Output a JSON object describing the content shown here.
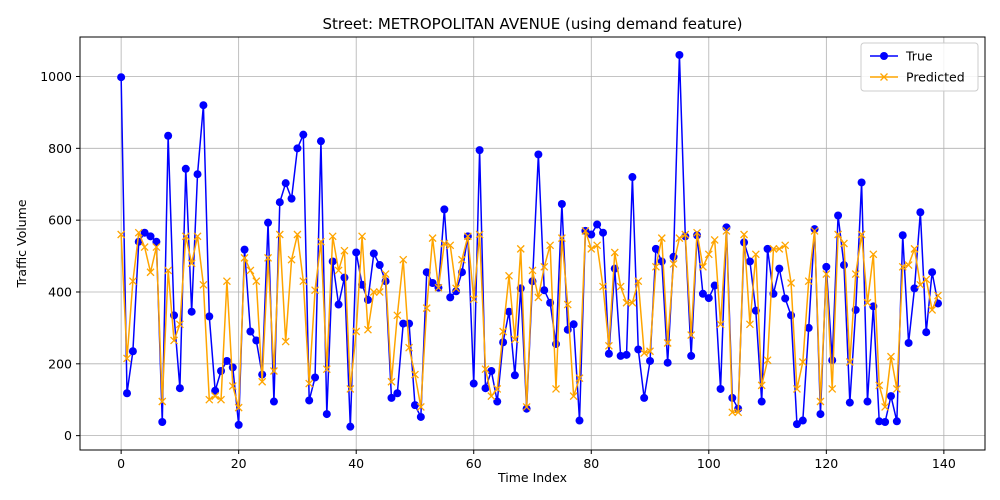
{
  "chart_data": {
    "type": "line",
    "title": "Street: METROPOLITAN AVENUE (using demand feature)",
    "xlabel": "Time Index",
    "ylabel": "Traffic Volume",
    "xlim": [
      -7,
      147
    ],
    "ylim": [
      -40,
      1110
    ],
    "xticks": [
      0,
      20,
      40,
      60,
      80,
      100,
      120,
      140
    ],
    "yticks": [
      0,
      200,
      400,
      600,
      800,
      1000
    ],
    "grid": true,
    "legend_position": "top-right",
    "x": [
      0,
      1,
      2,
      3,
      4,
      5,
      6,
      7,
      8,
      9,
      10,
      11,
      12,
      13,
      14,
      15,
      16,
      17,
      18,
      19,
      20,
      21,
      22,
      23,
      24,
      25,
      26,
      27,
      28,
      29,
      30,
      31,
      32,
      33,
      34,
      35,
      36,
      37,
      38,
      39,
      40,
      41,
      42,
      43,
      44,
      45,
      46,
      47,
      48,
      49,
      50,
      51,
      52,
      53,
      54,
      55,
      56,
      57,
      58,
      59,
      60,
      61,
      62,
      63,
      64,
      65,
      66,
      67,
      68,
      69,
      70,
      71,
      72,
      73,
      74,
      75,
      76,
      77,
      78,
      79,
      80,
      81,
      82,
      83,
      84,
      85,
      86,
      87,
      88,
      89,
      90,
      91,
      92,
      93,
      94,
      95,
      96,
      97,
      98,
      99,
      100,
      101,
      102,
      103,
      104,
      105,
      106,
      107,
      108,
      109,
      110,
      111,
      112,
      113,
      114,
      115,
      116,
      117,
      118,
      119,
      120,
      121,
      122,
      123,
      124,
      125,
      126,
      127,
      128,
      129,
      130,
      131,
      132,
      133,
      134,
      135,
      136,
      137,
      138,
      139
    ],
    "series": [
      {
        "name": "True",
        "color": "#0000ff",
        "marker": "circle",
        "values": [
          998,
          118,
          235,
          540,
          565,
          555,
          540,
          38,
          835,
          335,
          132,
          743,
          345,
          728,
          920,
          332,
          125,
          180,
          208,
          190,
          30,
          518,
          290,
          265,
          170,
          593,
          95,
          650,
          703,
          660,
          800,
          838,
          98,
          162,
          820,
          60,
          485,
          365,
          440,
          25,
          510,
          420,
          378,
          507,
          475,
          430,
          105,
          118,
          312,
          312,
          85,
          52,
          455,
          425,
          412,
          630,
          385,
          402,
          455,
          555,
          145,
          795,
          132,
          180,
          95,
          260,
          345,
          168,
          410,
          75,
          430,
          783,
          405,
          370,
          255,
          645,
          295,
          310,
          42,
          570,
          560,
          588,
          565,
          228,
          465,
          222,
          225,
          720,
          240,
          105,
          208,
          520,
          485,
          203,
          498,
          1060,
          555,
          222,
          558,
          395,
          383,
          418,
          130,
          580,
          105,
          75,
          538,
          485,
          348,
          95,
          520,
          395,
          465,
          382,
          335,
          32,
          42,
          300,
          575,
          60,
          470,
          210,
          613,
          475,
          92,
          350,
          705,
          95,
          360,
          40,
          38,
          110,
          40,
          558,
          258,
          410,
          622,
          288,
          455,
          368
        ]
      },
      {
        "name": "Predicted",
        "color": "#ffa500",
        "marker": "x",
        "values": [
          560,
          215,
          430,
          565,
          525,
          455,
          525,
          95,
          460,
          265,
          310,
          555,
          480,
          555,
          420,
          100,
          110,
          100,
          430,
          138,
          78,
          495,
          460,
          430,
          150,
          495,
          180,
          560,
          262,
          490,
          560,
          430,
          145,
          405,
          540,
          185,
          555,
          460,
          515,
          130,
          290,
          555,
          295,
          400,
          400,
          450,
          150,
          335,
          490,
          245,
          170,
          80,
          355,
          550,
          412,
          535,
          530,
          410,
          490,
          555,
          380,
          560,
          185,
          110,
          130,
          290,
          445,
          268,
          520,
          80,
          460,
          385,
          470,
          530,
          130,
          550,
          365,
          110,
          160,
          570,
          520,
          530,
          415,
          250,
          510,
          415,
          370,
          370,
          430,
          230,
          235,
          470,
          550,
          258,
          478,
          550,
          560,
          280,
          565,
          470,
          505,
          545,
          310,
          570,
          65,
          65,
          560,
          310,
          505,
          140,
          210,
          520,
          520,
          530,
          425,
          130,
          205,
          430,
          570,
          95,
          450,
          130,
          560,
          535,
          205,
          450,
          560,
          370,
          505,
          140,
          80,
          220,
          130,
          470,
          475,
          520,
          420,
          435,
          350,
          390
        ]
      }
    ]
  }
}
